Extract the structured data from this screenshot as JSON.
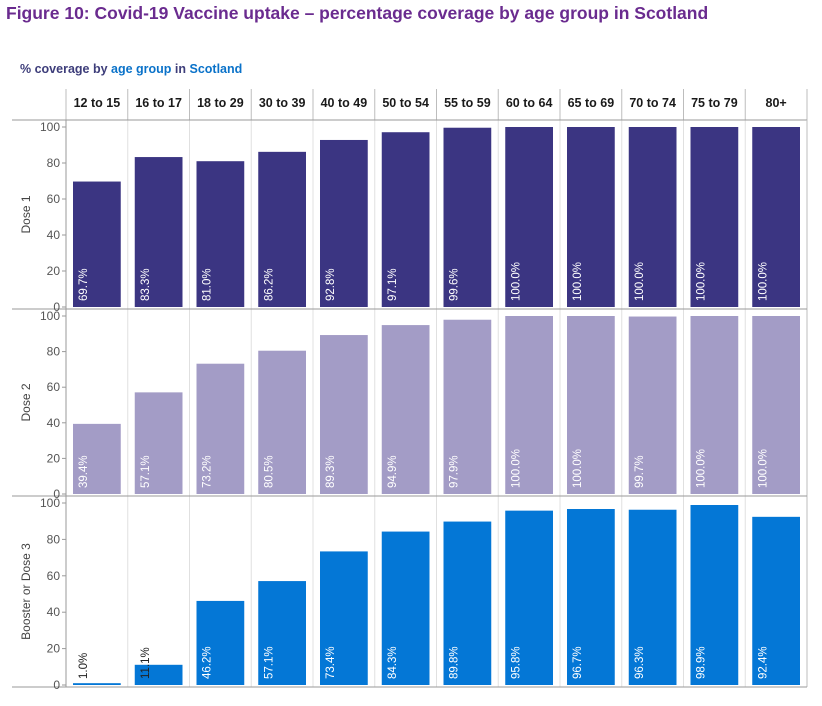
{
  "figure_title": "Figure 10: Covid-19 Vaccine uptake – percentage coverage by age group in Scotland",
  "subtitle": {
    "part1": "% coverage by ",
    "part2": "age group",
    "part3": " in ",
    "part4": "Scotland"
  },
  "colors": {
    "title": "#6a2b8f",
    "dose1": "#3b3582",
    "dose2": "#a39cc6",
    "dose3": "#0477d6",
    "highlight": "#0a72c9"
  },
  "chart_data": {
    "type": "bar",
    "title": "Figure 10: Covid-19 Vaccine uptake – percentage coverage by age group in Scotland",
    "categories": [
      "12 to 15",
      "16 to 17",
      "18 to 29",
      "30 to 39",
      "40 to 49",
      "50 to 54",
      "55 to 59",
      "60 to 64",
      "65 to 69",
      "70 to 74",
      "75 to 79",
      "80+"
    ],
    "ylim": [
      0,
      100
    ],
    "yticks": [
      0,
      20,
      40,
      60,
      80,
      100
    ],
    "series": [
      {
        "name": "Dose 1",
        "color": "#3b3582",
        "values": [
          69.7,
          83.3,
          81.0,
          86.2,
          92.8,
          97.1,
          99.6,
          100.0,
          100.0,
          100.0,
          100.0,
          100.0
        ],
        "labels": [
          "69.7%",
          "83.3%",
          "81.0%",
          "86.2%",
          "92.8%",
          "97.1%",
          "99.6%",
          "100.0%",
          "100.0%",
          "100.0%",
          "100.0%",
          "100.0%"
        ]
      },
      {
        "name": "Dose 2",
        "color": "#a39cc6",
        "values": [
          39.4,
          57.1,
          73.2,
          80.5,
          89.3,
          94.9,
          97.9,
          100.0,
          100.0,
          99.7,
          100.0,
          100.0
        ],
        "labels": [
          "39.4%",
          "57.1%",
          "73.2%",
          "80.5%",
          "89.3%",
          "94.9%",
          "97.9%",
          "100.0%",
          "100.0%",
          "99.7%",
          "100.0%",
          "100.0%"
        ]
      },
      {
        "name": "Booster or Dose 3",
        "color": "#0477d6",
        "values": [
          1.0,
          11.1,
          46.2,
          57.1,
          73.4,
          84.3,
          89.8,
          95.8,
          96.7,
          96.3,
          98.9,
          92.4
        ],
        "labels": [
          "1.0%",
          "11.1%",
          "46.2%",
          "57.1%",
          "73.4%",
          "84.3%",
          "89.8%",
          "95.8%",
          "96.7%",
          "96.3%",
          "98.9%",
          "92.4%"
        ]
      }
    ]
  }
}
